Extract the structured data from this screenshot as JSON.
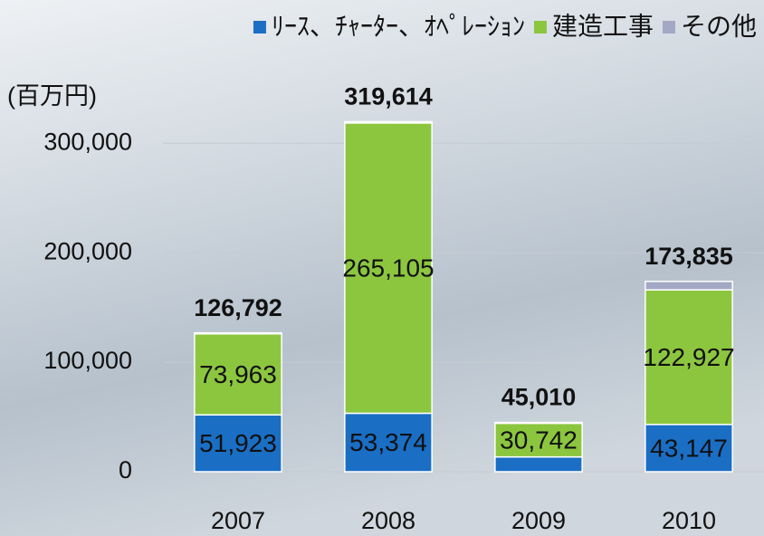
{
  "chart_data": {
    "type": "stacked-bar",
    "unit_label": "(百万円)",
    "categories": [
      "2007",
      "2008",
      "2009",
      "2010"
    ],
    "series": [
      {
        "name": "ﾘｰｽ、ﾁｬｰﾀｰ、ｵﾍﾟﾚｰｼｮﾝ",
        "color": "#1a6ec4",
        "values": [
          51923,
          53374,
          13500,
          43147
        ],
        "value_labels": [
          "51,923",
          "53,374",
          null,
          "43,147"
        ]
      },
      {
        "name": "建造工事",
        "color": "#8cc63f",
        "values": [
          73963,
          265105,
          30742,
          122927
        ],
        "value_labels": [
          "73,963",
          "265,105",
          "30,742",
          "122,927"
        ]
      },
      {
        "name": "その他",
        "color": "#a3a9c4",
        "values": [
          906,
          1135,
          768,
          7761
        ]
      }
    ],
    "totals": [
      126792,
      319614,
      45010,
      173835
    ],
    "total_labels": [
      "126,792",
      "319,614",
      "45,010",
      "173,835"
    ],
    "ylim": [
      0,
      320000
    ],
    "yticks": [
      0,
      {
        "value": 100000,
        "label": "100,000"
      },
      {
        "value": 200000,
        "label": "200,000"
      },
      {
        "value": 300000,
        "label": "300,000"
      }
    ],
    "grid": true
  }
}
